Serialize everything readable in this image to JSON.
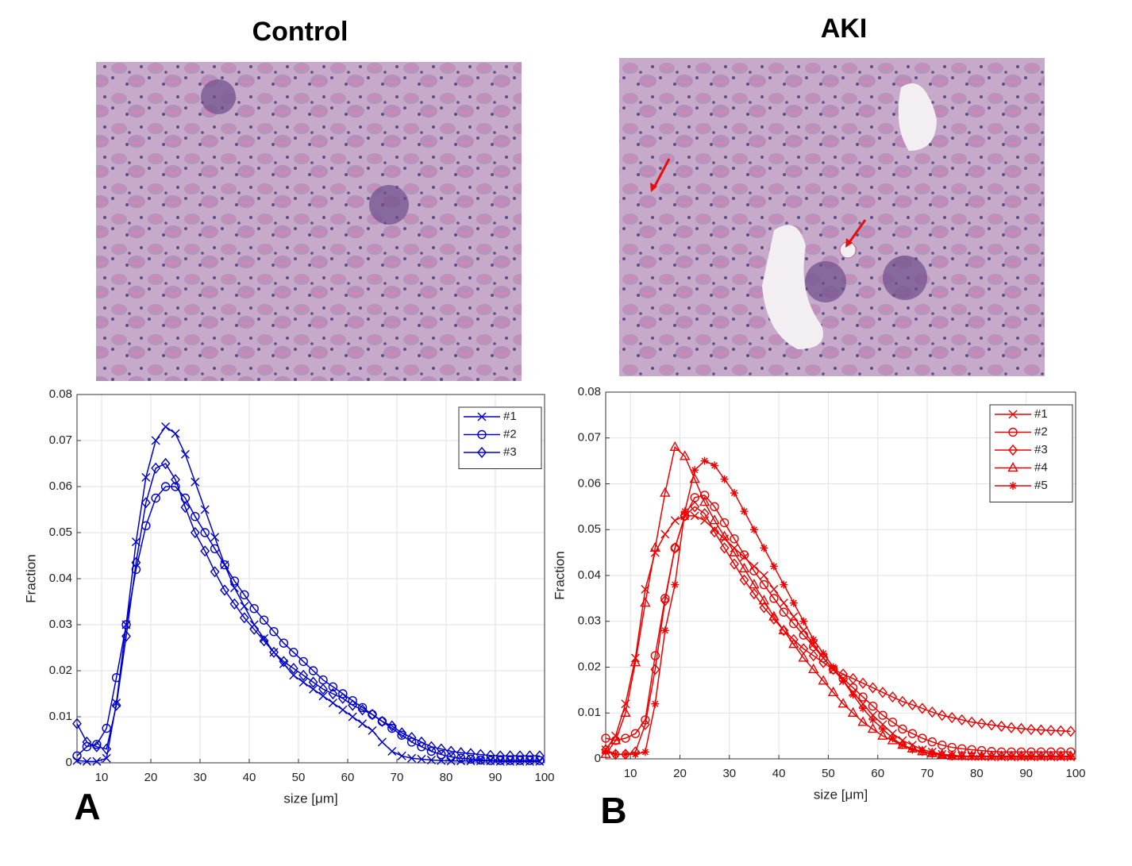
{
  "chart_data": [
    {
      "type": "line",
      "title": "Control",
      "label": "A",
      "xlabel": "size [μm]",
      "ylabel": "Fraction",
      "xlim": [
        5,
        100
      ],
      "ylim": [
        0,
        0.08
      ],
      "xticks": [
        10,
        20,
        30,
        40,
        50,
        60,
        70,
        80,
        90,
        100
      ],
      "yticks": [
        0,
        0.01,
        0.02,
        0.03,
        0.04,
        0.05,
        0.06,
        0.07,
        0.08
      ],
      "grid": true,
      "legend": "upper right",
      "x": [
        5,
        7,
        9,
        11,
        13,
        15,
        17,
        19,
        21,
        23,
        25,
        27,
        29,
        31,
        33,
        35,
        37,
        39,
        41,
        43,
        45,
        47,
        49,
        51,
        53,
        55,
        57,
        59,
        61,
        63,
        65,
        67,
        69,
        71,
        73,
        75,
        77,
        79,
        81,
        83,
        85,
        87,
        89,
        91,
        93,
        95,
        97,
        99
      ],
      "series": [
        {
          "name": "#1",
          "color": "#0000cc",
          "marker": "x",
          "values": [
            0.0005,
            0.0003,
            0.0003,
            0.001,
            0.013,
            0.03,
            0.048,
            0.062,
            0.07,
            0.073,
            0.0715,
            0.067,
            0.061,
            0.055,
            0.049,
            0.043,
            0.038,
            0.034,
            0.03,
            0.027,
            0.024,
            0.0215,
            0.019,
            0.0175,
            0.016,
            0.0145,
            0.013,
            0.0115,
            0.01,
            0.0085,
            0.007,
            0.0045,
            0.0025,
            0.0015,
            0.001,
            0.0008,
            0.0006,
            0.0005,
            0.0004,
            0.0004,
            0.0004,
            0.0004,
            0.0004,
            0.0003,
            0.0003,
            0.0003,
            0.0003,
            0.0003
          ]
        },
        {
          "name": "#2",
          "color": "#0000cc",
          "marker": "o",
          "values": [
            0.0015,
            0.0035,
            0.004,
            0.0075,
            0.0185,
            0.03,
            0.042,
            0.0515,
            0.0575,
            0.06,
            0.06,
            0.0575,
            0.0535,
            0.05,
            0.0465,
            0.043,
            0.0395,
            0.0365,
            0.0335,
            0.031,
            0.0285,
            0.026,
            0.024,
            0.022,
            0.02,
            0.018,
            0.0165,
            0.015,
            0.0135,
            0.012,
            0.0105,
            0.009,
            0.0075,
            0.006,
            0.0045,
            0.0035,
            0.0025,
            0.0018,
            0.0013,
            0.001,
            0.0008,
            0.0006,
            0.0005,
            0.0005,
            0.0005,
            0.0005,
            0.0005,
            0.0005
          ]
        },
        {
          "name": "#3",
          "color": "#0000cc",
          "marker": "d",
          "values": [
            0.0085,
            0.0045,
            0.0035,
            0.003,
            0.0125,
            0.0275,
            0.0435,
            0.0565,
            0.064,
            0.065,
            0.0615,
            0.0555,
            0.05,
            0.046,
            0.0415,
            0.0375,
            0.0345,
            0.0315,
            0.029,
            0.0265,
            0.024,
            0.022,
            0.0205,
            0.019,
            0.0175,
            0.016,
            0.015,
            0.014,
            0.0125,
            0.0115,
            0.0105,
            0.009,
            0.008,
            0.0065,
            0.0055,
            0.0045,
            0.0035,
            0.003,
            0.0025,
            0.0022,
            0.002,
            0.0018,
            0.0016,
            0.0015,
            0.0015,
            0.0015,
            0.0015,
            0.0015
          ]
        }
      ]
    },
    {
      "type": "line",
      "title": "AKI",
      "label": "B",
      "xlabel": "size [μm]",
      "ylabel": "Fraction",
      "xlim": [
        5,
        100
      ],
      "ylim": [
        0,
        0.08
      ],
      "xticks": [
        10,
        20,
        30,
        40,
        50,
        60,
        70,
        80,
        90,
        100
      ],
      "yticks": [
        0,
        0.01,
        0.02,
        0.03,
        0.04,
        0.05,
        0.06,
        0.07,
        0.08
      ],
      "grid": true,
      "legend": "upper right",
      "x": [
        5,
        7,
        9,
        11,
        13,
        15,
        17,
        19,
        21,
        23,
        25,
        27,
        29,
        31,
        33,
        35,
        37,
        39,
        41,
        43,
        45,
        47,
        49,
        51,
        53,
        55,
        57,
        59,
        61,
        63,
        65,
        67,
        69,
        71,
        73,
        75,
        77,
        79,
        81,
        83,
        85,
        87,
        89,
        91,
        93,
        95,
        97,
        99
      ],
      "series": [
        {
          "name": "#1",
          "color": "#ee0000",
          "marker": "x",
          "values": [
            0.002,
            0.005,
            0.012,
            0.022,
            0.037,
            0.045,
            0.049,
            0.052,
            0.053,
            0.053,
            0.052,
            0.05,
            0.048,
            0.046,
            0.044,
            0.042,
            0.04,
            0.037,
            0.034,
            0.031,
            0.028,
            0.025,
            0.022,
            0.0195,
            0.017,
            0.0145,
            0.012,
            0.0095,
            0.0075,
            0.0055,
            0.004,
            0.003,
            0.002,
            0.0015,
            0.001,
            0.0008,
            0.0006,
            0.0005,
            0.0005,
            0.0004,
            0.0004,
            0.0004,
            0.0004,
            0.0004,
            0.0004,
            0.0004,
            0.0004,
            0.0004
          ]
        },
        {
          "name": "#2",
          "color": "#ee0000",
          "marker": "o",
          "values": [
            0.0045,
            0.004,
            0.0045,
            0.0055,
            0.0085,
            0.0225,
            0.035,
            0.046,
            0.053,
            0.057,
            0.0575,
            0.055,
            0.0515,
            0.048,
            0.0445,
            0.041,
            0.038,
            0.035,
            0.032,
            0.0295,
            0.027,
            0.0245,
            0.022,
            0.0195,
            0.0175,
            0.0155,
            0.0135,
            0.0115,
            0.0095,
            0.008,
            0.0065,
            0.0055,
            0.0045,
            0.0037,
            0.003,
            0.0025,
            0.0022,
            0.002,
            0.0018,
            0.0016,
            0.0015,
            0.0015,
            0.0015,
            0.0015,
            0.0015,
            0.0015,
            0.0015,
            0.0015
          ]
        },
        {
          "name": "#3",
          "color": "#ee0000",
          "marker": "d",
          "values": [
            0.002,
            0.001,
            0.001,
            0.0015,
            0.0075,
            0.0195,
            0.0345,
            0.046,
            0.053,
            0.055,
            0.0535,
            0.0495,
            0.046,
            0.0425,
            0.039,
            0.036,
            0.033,
            0.0305,
            0.028,
            0.026,
            0.024,
            0.0225,
            0.021,
            0.0195,
            0.0185,
            0.0175,
            0.0165,
            0.0155,
            0.0145,
            0.0135,
            0.0125,
            0.0118,
            0.011,
            0.0102,
            0.0095,
            0.009,
            0.0085,
            0.008,
            0.0077,
            0.0074,
            0.0071,
            0.0068,
            0.0066,
            0.0064,
            0.0063,
            0.0062,
            0.0061,
            0.006
          ]
        },
        {
          "name": "#4",
          "color": "#ee0000",
          "marker": "^",
          "values": [
            0.001,
            0.004,
            0.01,
            0.021,
            0.034,
            0.046,
            0.058,
            0.068,
            0.066,
            0.061,
            0.056,
            0.052,
            0.0485,
            0.045,
            0.0415,
            0.038,
            0.0345,
            0.031,
            0.028,
            0.025,
            0.022,
            0.0195,
            0.017,
            0.0145,
            0.012,
            0.01,
            0.008,
            0.0065,
            0.005,
            0.004,
            0.003,
            0.0022,
            0.0016,
            0.0012,
            0.0009,
            0.0006,
            0.0006,
            0.0006,
            0.0006,
            0.0006,
            0.0006,
            0.0006,
            0.0006,
            0.0006,
            0.0006,
            0.0006,
            0.0006,
            0.0006
          ]
        },
        {
          "name": "#5",
          "color": "#ee0000",
          "marker": "*",
          "values": [
            0.0015,
            0.001,
            0.001,
            0.001,
            0.0015,
            0.012,
            0.028,
            0.038,
            0.054,
            0.063,
            0.065,
            0.064,
            0.061,
            0.058,
            0.054,
            0.05,
            0.046,
            0.042,
            0.038,
            0.034,
            0.03,
            0.026,
            0.023,
            0.02,
            0.017,
            0.014,
            0.011,
            0.0085,
            0.0065,
            0.0045,
            0.003,
            0.002,
            0.0015,
            0.001,
            0.0008,
            0.0005,
            0.0005,
            0.0005,
            0.0005,
            0.0005,
            0.0005,
            0.0005,
            0.0005,
            0.0005,
            0.0005,
            0.0005,
            0.0005,
            0.0005
          ]
        }
      ]
    }
  ]
}
